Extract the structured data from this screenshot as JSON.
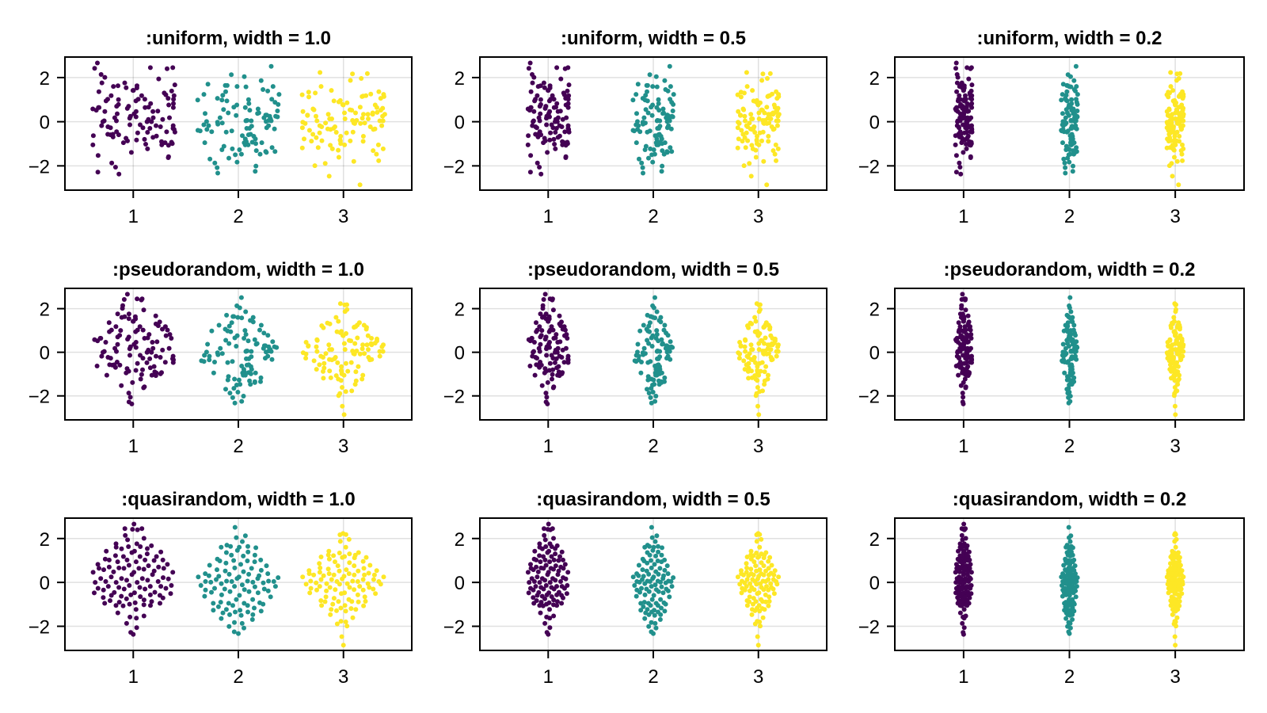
{
  "chart_data": {
    "type": "scatter",
    "subtype": "jittered strip plot grid (3 rows x 3 columns)",
    "categories": [
      "1",
      "2",
      "3"
    ],
    "colors": [
      "#440154",
      "#21908c",
      "#fde725"
    ],
    "xlim": [
      0.35,
      3.65
    ],
    "ylim": [
      -3.1,
      2.93
    ],
    "xticks": [
      1,
      2,
      3
    ],
    "xtick_labels": [
      "1",
      "2",
      "3"
    ],
    "yticks": [
      -2,
      0,
      2
    ],
    "ytick_labels": [
      "−2",
      "0",
      "2"
    ],
    "grid": true,
    "xlabel": "",
    "ylabel": "",
    "legend": "none",
    "panels": [
      {
        "title": ":uniform, width = 1.0",
        "jitter": "uniform",
        "width": 1.0
      },
      {
        "title": ":uniform, width = 0.5",
        "jitter": "uniform",
        "width": 0.5
      },
      {
        "title": ":uniform, width = 0.2",
        "jitter": "uniform",
        "width": 0.2
      },
      {
        "title": ":pseudorandom, width = 1.0",
        "jitter": "pseudorandom",
        "width": 1.0
      },
      {
        "title": ":pseudorandom, width = 0.5",
        "jitter": "pseudorandom",
        "width": 0.5
      },
      {
        "title": ":pseudorandom, width = 0.2",
        "jitter": "pseudorandom",
        "width": 0.2
      },
      {
        "title": ":quasirandom, width = 1.0",
        "jitter": "quasirandom",
        "width": 1.0
      },
      {
        "title": ":quasirandom, width = 0.5",
        "jitter": "quasirandom",
        "width": 0.5
      },
      {
        "title": ":quasirandom, width = 0.2",
        "jitter": "quasirandom",
        "width": 0.2
      }
    ],
    "series": [
      {
        "name": "1",
        "x": 1,
        "values": [
          2.66,
          2.45,
          2.4,
          2.45,
          2.42,
          2.14,
          2.01,
          1.94,
          1.76,
          1.76,
          1.63,
          1.63,
          1.67,
          1.53,
          1.6,
          1.54,
          1.42,
          1.36,
          1.39,
          1.3,
          1.42,
          1.18,
          1.06,
          1.18,
          1.02,
          1.02,
          1.02,
          1.18,
          1.22,
          1.02,
          1.0,
          0.94,
          0.94,
          0.78,
          0.66,
          0.64,
          0.7,
          0.6,
          0.58,
          0.64,
          0.76,
          0.82,
          0.82,
          0.64,
          0.64,
          0.7,
          0.48,
          0.52,
          0.46,
          0.46,
          0.46,
          0.36,
          0.22,
          0.18,
          0.18,
          0.36,
          0.25,
          0.1,
          0.16,
          0,
          0.04,
          0.1,
          0.04,
          0.18,
          0,
          0,
          -0.14,
          -0.18,
          -0.14,
          -0.23,
          -0.23,
          -0.18,
          -0.27,
          -0.35,
          -0.46,
          -0.51,
          -0.63,
          -0.48,
          -0.27,
          -0.45,
          -0.18,
          -0.3,
          -0.47,
          -0.59,
          -0.3,
          -0.57,
          -0.57,
          -0.69,
          -0.8,
          -0.93,
          -0.83,
          -0.75,
          -0.71,
          -0.65,
          -0.59,
          -0.95,
          -0.87,
          -0.99,
          -0.95,
          -1.05,
          -1.02,
          -0.9,
          -1.05,
          -1.07,
          -1.23,
          -1.39,
          -1.58,
          -1.53,
          -1.63,
          -1.87,
          -2.06,
          -2.28,
          -2.37
        ]
      },
      {
        "name": "2",
        "x": 2,
        "values": [
          2.51,
          2.13,
          2.04,
          1.86,
          1.64,
          1.64,
          1.6,
          1.7,
          1.58,
          1.6,
          1.36,
          1.39,
          1.24,
          1.46,
          1.24,
          1.2,
          1.06,
          1.0,
          1.02,
          0.98,
          0.98,
          0.94,
          0.76,
          0.82,
          0.88,
          0.78,
          0.64,
          0.66,
          0.58,
          0.49,
          0.37,
          0.55,
          0.4,
          0.37,
          0.52,
          0.28,
          0.3,
          0.25,
          0.4,
          0.22,
          0.18,
          0.18,
          0.25,
          0.3,
          0.13,
          0.06,
          0.01,
          0.06,
          0.04,
          0.01,
          -0.06,
          0.04,
          0.04,
          -0.02,
          0.06,
          -0.11,
          -0.14,
          -0.2,
          -0.35,
          -0.42,
          -0.45,
          -0.33,
          -0.3,
          -0.27,
          -0.18,
          -0.47,
          -0.63,
          -0.42,
          -0.57,
          -0.39,
          -0.3,
          -0.18,
          -0.59,
          -0.66,
          -0.78,
          -0.78,
          -0.9,
          -0.95,
          -1.05,
          -0.99,
          -1.27,
          -1.17,
          -1.23,
          -1.35,
          -1.47,
          -1.05,
          -0.95,
          -0.93,
          -0.95,
          -1.11,
          -1.31,
          -1.27,
          -1.35,
          -1.47,
          -1.5,
          -1.39,
          -1.65,
          -1.69,
          -1.83,
          -1.87,
          -2.01,
          -2.08,
          -2.33,
          -2.25
        ]
      },
      {
        "name": "3",
        "x": 3,
        "values": [
          2.23,
          2.17,
          2.18,
          1.96,
          1.87,
          1.6,
          1.42,
          1.36,
          1.34,
          1.3,
          1.22,
          1.12,
          1.24,
          1.14,
          1.14,
          1.16,
          1.25,
          1.06,
          0.96,
          1.18,
          0.94,
          0.9,
          0.76,
          0.78,
          0.86,
          0.76,
          0.64,
          0.54,
          0.66,
          0.61,
          0.58,
          0.54,
          0.52,
          0.46,
          0.52,
          0.42,
          0.34,
          0.34,
          0.34,
          0.3,
          0.25,
          0.4,
          0.4,
          0.34,
          0.34,
          0.4,
          0.25,
          0.28,
          0.16,
          0.13,
          0.13,
          0.13,
          0.13,
          0.04,
          0.06,
          0.04,
          -0.02,
          0.06,
          -0.06,
          0.04,
          -0.06,
          -0.06,
          -0.08,
          -0.08,
          -0.08,
          -0.27,
          -0.23,
          -0.33,
          -0.23,
          -0.3,
          -0.23,
          -0.18,
          -0.18,
          -0.35,
          -0.35,
          -0.33,
          -0.47,
          -0.39,
          -0.48,
          -0.51,
          -0.57,
          -0.51,
          -0.66,
          -0.66,
          -0.78,
          -0.83,
          -0.72,
          -0.87,
          -0.88,
          -1.05,
          -0.89,
          -0.86,
          -1.05,
          -0.99,
          -1.23,
          -1.07,
          -0.87,
          -1.17,
          -1.23,
          -1.29,
          -1.31,
          -1.47,
          -1.19,
          -1.61,
          -1.8,
          -1.89,
          -1.77,
          -1.99,
          -2.47,
          -2.86
        ]
      }
    ]
  }
}
